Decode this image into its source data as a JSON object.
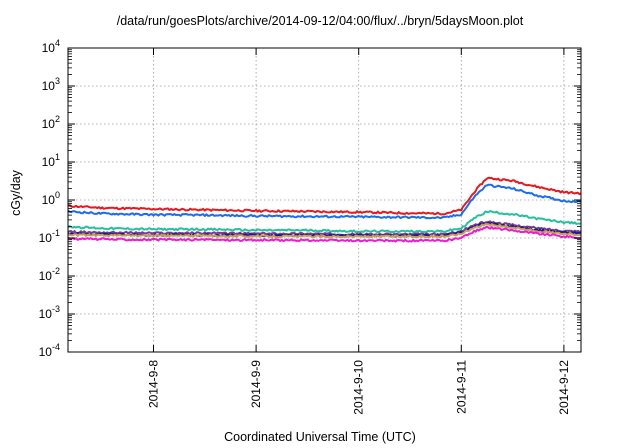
{
  "title": "/data/run/goesPlots/archive/2014-09-12/04:00/flux/../bryn/5daysMoon.plot",
  "chart_data": {
    "type": "line",
    "title": "/data/run/goesPlots/archive/2014-09-12/04:00/flux/../bryn/5daysMoon.plot",
    "xlabel": "Coordinated Universal Time (UTC)",
    "ylabel": "cGy/day",
    "yscale": "log",
    "ylim": [
      0.0001,
      10000
    ],
    "xlim": [
      "2014-09-07 04:00",
      "2014-09-12 04:00"
    ],
    "grid": true,
    "xticks": [
      {
        "value": "2014-09-08 00:00",
        "label": "2014-9-8"
      },
      {
        "value": "2014-09-09 00:00",
        "label": "2014-9-9"
      },
      {
        "value": "2014-09-10 00:00",
        "label": "2014-9-10"
      },
      {
        "value": "2014-09-11 00:00",
        "label": "2014-9-11"
      },
      {
        "value": "2014-09-12 00:00",
        "label": "2014-9-12"
      }
    ],
    "yticks": [
      {
        "base": "10",
        "exp": "-4"
      },
      {
        "base": "10",
        "exp": "-3"
      },
      {
        "base": "10",
        "exp": "-2"
      },
      {
        "base": "10",
        "exp": "-1"
      },
      {
        "base": "10",
        "exp": "0"
      },
      {
        "base": "10",
        "exp": "1"
      },
      {
        "base": "10",
        "exp": "2"
      },
      {
        "base": "10",
        "exp": "3"
      },
      {
        "base": "10",
        "exp": "4"
      }
    ],
    "x": [
      "2014-09-07 04:00",
      "2014-09-07 12:00",
      "2014-09-08 00:00",
      "2014-09-08 12:00",
      "2014-09-09 00:00",
      "2014-09-09 12:00",
      "2014-09-10 00:00",
      "2014-09-10 12:00",
      "2014-09-10 20:00",
      "2014-09-11 00:00",
      "2014-09-11 03:00",
      "2014-09-11 06:00",
      "2014-09-11 12:00",
      "2014-09-11 18:00",
      "2014-09-12 00:00",
      "2014-09-12 04:00"
    ],
    "series": [
      {
        "color": "#e8191c",
        "values": [
          0.7,
          0.62,
          0.58,
          0.55,
          0.52,
          0.5,
          0.48,
          0.45,
          0.44,
          0.55,
          1.6,
          3.8,
          3.2,
          2.2,
          1.6,
          1.5
        ]
      },
      {
        "color": "#1a6cf0",
        "values": [
          0.5,
          0.44,
          0.41,
          0.4,
          0.38,
          0.37,
          0.36,
          0.35,
          0.34,
          0.42,
          1.2,
          2.5,
          2.0,
          1.3,
          0.95,
          0.9
        ]
      },
      {
        "color": "#22c39a",
        "values": [
          0.2,
          0.18,
          0.17,
          0.17,
          0.16,
          0.16,
          0.15,
          0.15,
          0.15,
          0.18,
          0.33,
          0.5,
          0.42,
          0.32,
          0.26,
          0.24
        ]
      },
      {
        "color": "#7a3a96",
        "values": [
          0.145,
          0.14,
          0.135,
          0.135,
          0.13,
          0.13,
          0.125,
          0.125,
          0.125,
          0.15,
          0.22,
          0.27,
          0.22,
          0.18,
          0.155,
          0.15
        ]
      },
      {
        "color": "#1a1a8c",
        "values": [
          0.13,
          0.125,
          0.12,
          0.12,
          0.118,
          0.117,
          0.115,
          0.115,
          0.115,
          0.14,
          0.2,
          0.25,
          0.2,
          0.16,
          0.14,
          0.135
        ]
      },
      {
        "color": "#c8a050",
        "values": [
          0.12,
          0.118,
          0.115,
          0.115,
          0.112,
          0.11,
          0.11,
          0.11,
          0.11,
          0.13,
          0.19,
          0.23,
          0.19,
          0.15,
          0.13,
          0.125
        ]
      },
      {
        "color": "#f01ad2",
        "values": [
          0.095,
          0.093,
          0.09,
          0.09,
          0.088,
          0.087,
          0.085,
          0.085,
          0.085,
          0.1,
          0.15,
          0.19,
          0.16,
          0.13,
          0.11,
          0.1
        ]
      }
    ]
  }
}
